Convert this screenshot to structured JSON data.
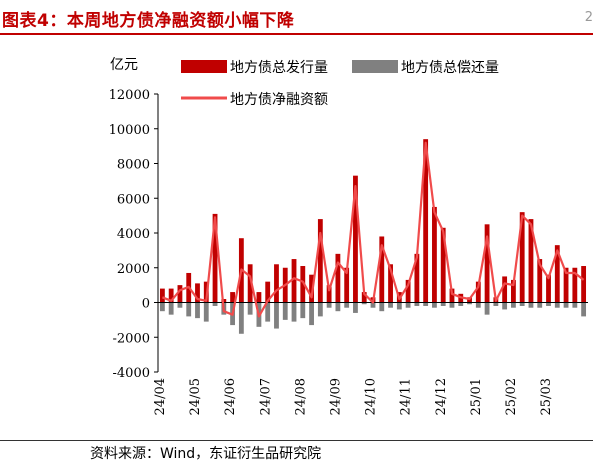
{
  "header": {
    "title": "图表4：本周地方债净融资额小幅下降",
    "marker": "2"
  },
  "footer": {
    "source": "资料来源：Wind，东证衍生品研究院"
  },
  "chart_data": {
    "type": "bar",
    "unit_label": "亿元",
    "ylim": [
      -4000,
      12000
    ],
    "yticks": [
      -4000,
      -2000,
      0,
      2000,
      4000,
      6000,
      8000,
      10000,
      12000
    ],
    "xtick_labels": [
      "24/04",
      "24/05",
      "24/06",
      "24/07",
      "24/08",
      "24/09",
      "24/10",
      "24/11",
      "24/12",
      "25/01",
      "25/02",
      "25/03"
    ],
    "xtick_positions": [
      0,
      4,
      8,
      12,
      16,
      20,
      24,
      28,
      32,
      36,
      40,
      44
    ],
    "legend": "top",
    "colors": {
      "issuance": "#c00000",
      "repayment": "#808080",
      "net": "#f04b4b"
    },
    "series": [
      {
        "name": "地方债总发行量",
        "kind": "bar",
        "values": [
          800,
          800,
          1000,
          1700,
          1100,
          1200,
          5100,
          200,
          600,
          3700,
          2200,
          600,
          1200,
          2200,
          2000,
          2500,
          2100,
          1600,
          4800,
          1000,
          2800,
          2000,
          7300,
          600,
          300,
          3800,
          2200,
          600,
          1300,
          2800,
          9400,
          5500,
          4300,
          800,
          500,
          300,
          1200,
          4500,
          300,
          1500,
          1300,
          5200,
          4800,
          2500,
          1600,
          3300,
          2000,
          2000,
          2100
        ]
      },
      {
        "name": "地方债总偿还量",
        "kind": "bar",
        "values": [
          -500,
          -700,
          -300,
          -800,
          -900,
          -1100,
          -200,
          -700,
          -1300,
          -1800,
          -700,
          -1400,
          -1100,
          -1500,
          -1000,
          -1100,
          -900,
          -1300,
          -800,
          -300,
          -500,
          -300,
          -600,
          -100,
          -300,
          -500,
          -300,
          -400,
          -300,
          -200,
          -200,
          -300,
          -200,
          -300,
          -200,
          -100,
          -300,
          -700,
          -200,
          -400,
          -300,
          -200,
          -300,
          -300,
          -200,
          -300,
          -300,
          -300,
          -800
        ]
      },
      {
        "name": "地方债净融资额",
        "kind": "line",
        "values": [
          300,
          100,
          700,
          900,
          200,
          100,
          4900,
          -500,
          -700,
          1900,
          1500,
          -800,
          100,
          700,
          1000,
          1400,
          1200,
          300,
          4000,
          700,
          2300,
          1700,
          6700,
          500,
          0,
          3300,
          1900,
          200,
          1000,
          2600,
          9200,
          5200,
          4100,
          500,
          300,
          200,
          900,
          3800,
          100,
          1100,
          1000,
          5000,
          4500,
          2200,
          1400,
          3000,
          1700,
          1700,
          1300
        ]
      }
    ]
  }
}
